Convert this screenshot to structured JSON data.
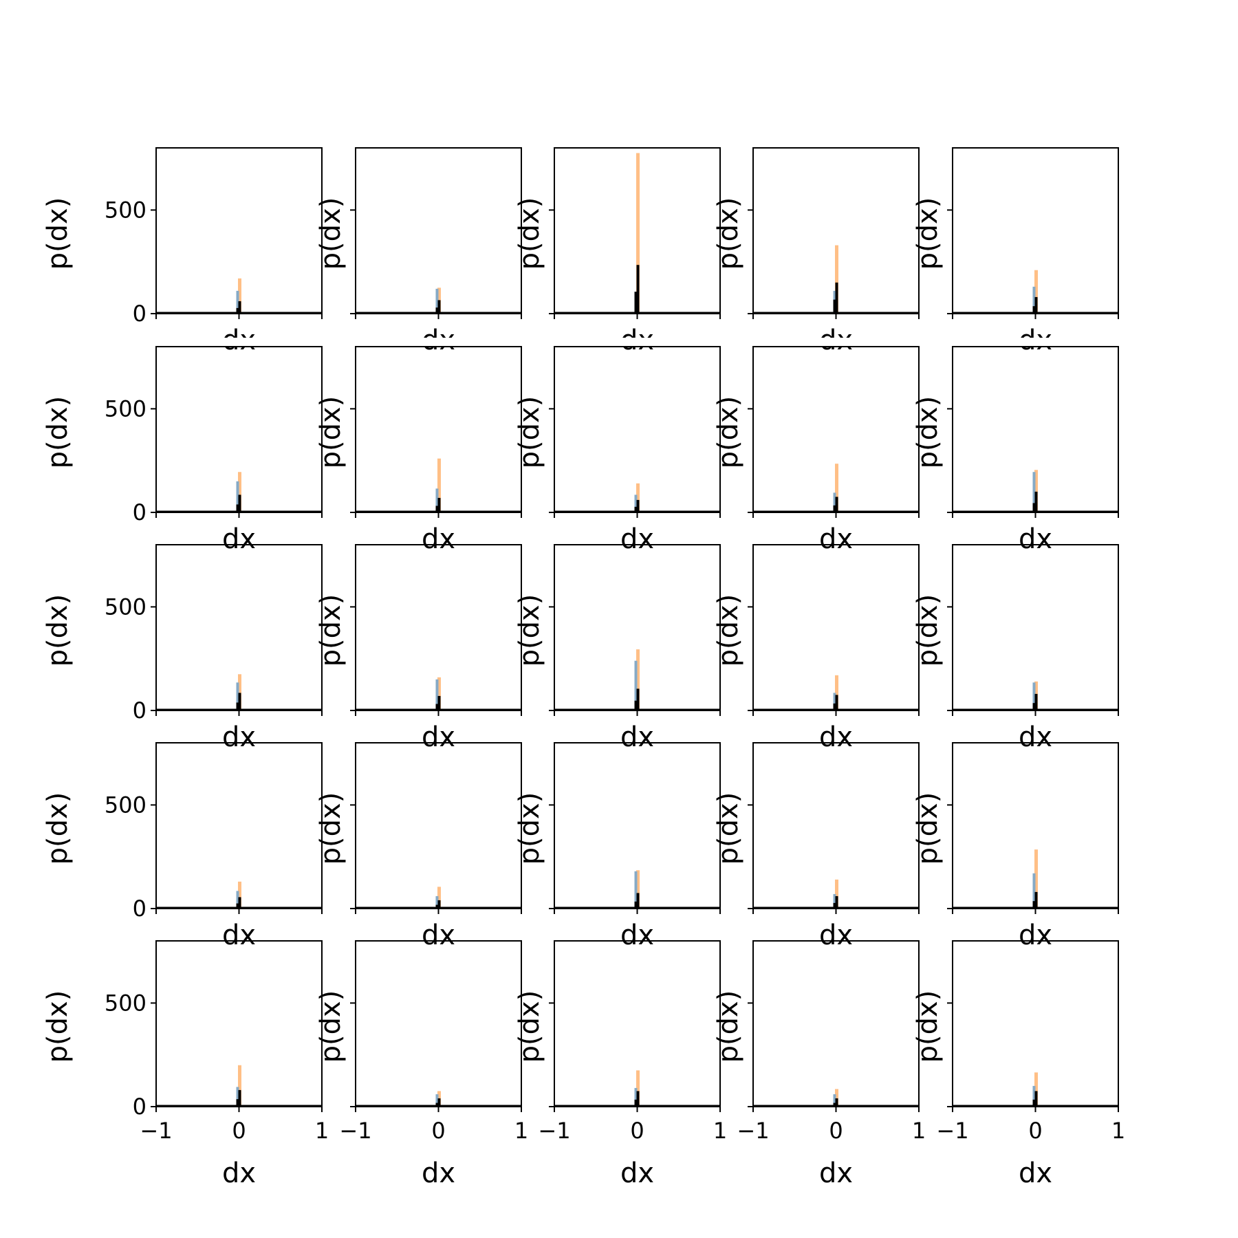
{
  "figure": {
    "rows": 5,
    "cols": 5,
    "x_label": "dx",
    "y_label": "p(dx)"
  },
  "chart_data": {
    "type": "bar",
    "xlim": [
      -1,
      1
    ],
    "ylim": [
      0,
      800
    ],
    "x_ticks": [
      "−1",
      "0",
      "1"
    ],
    "y_ticks": [
      "0",
      "500"
    ],
    "xlabel": "dx",
    "ylabel": "p(dx)",
    "colors": {
      "orange": "#ffbf86",
      "blue": "#86aac6",
      "black": "#000000"
    },
    "panels": [
      {
        "row": 0,
        "col": 0,
        "orange": 170,
        "blue": 110,
        "black": 60
      },
      {
        "row": 0,
        "col": 1,
        "orange": 125,
        "blue": 120,
        "black": 65
      },
      {
        "row": 0,
        "col": 2,
        "orange": 775,
        "blue": 100,
        "black": 235
      },
      {
        "row": 0,
        "col": 3,
        "orange": 330,
        "blue": 110,
        "black": 150
      },
      {
        "row": 0,
        "col": 4,
        "orange": 210,
        "blue": 130,
        "black": 80
      },
      {
        "row": 1,
        "col": 0,
        "orange": 195,
        "blue": 150,
        "black": 85
      },
      {
        "row": 1,
        "col": 1,
        "orange": 260,
        "blue": 115,
        "black": 70
      },
      {
        "row": 1,
        "col": 2,
        "orange": 140,
        "blue": 85,
        "black": 60
      },
      {
        "row": 1,
        "col": 3,
        "orange": 235,
        "blue": 95,
        "black": 75
      },
      {
        "row": 1,
        "col": 4,
        "orange": 205,
        "blue": 195,
        "black": 100
      },
      {
        "row": 2,
        "col": 0,
        "orange": 175,
        "blue": 135,
        "black": 85
      },
      {
        "row": 2,
        "col": 1,
        "orange": 160,
        "blue": 150,
        "black": 70
      },
      {
        "row": 2,
        "col": 2,
        "orange": 295,
        "blue": 240,
        "black": 105
      },
      {
        "row": 2,
        "col": 3,
        "orange": 170,
        "blue": 85,
        "black": 75
      },
      {
        "row": 2,
        "col": 4,
        "orange": 140,
        "blue": 135,
        "black": 80
      },
      {
        "row": 3,
        "col": 0,
        "orange": 130,
        "blue": 85,
        "black": 55
      },
      {
        "row": 3,
        "col": 1,
        "orange": 105,
        "blue": 60,
        "black": 40
      },
      {
        "row": 3,
        "col": 2,
        "orange": 185,
        "blue": 180,
        "black": 75
      },
      {
        "row": 3,
        "col": 3,
        "orange": 140,
        "blue": 70,
        "black": 60
      },
      {
        "row": 3,
        "col": 4,
        "orange": 285,
        "blue": 170,
        "black": 80
      },
      {
        "row": 4,
        "col": 0,
        "orange": 200,
        "blue": 95,
        "black": 80
      },
      {
        "row": 4,
        "col": 1,
        "orange": 75,
        "blue": 60,
        "black": 40
      },
      {
        "row": 4,
        "col": 2,
        "orange": 175,
        "blue": 90,
        "black": 75
      },
      {
        "row": 4,
        "col": 3,
        "orange": 85,
        "blue": 60,
        "black": 40
      },
      {
        "row": 4,
        "col": 4,
        "orange": 165,
        "blue": 100,
        "black": 75
      }
    ]
  }
}
